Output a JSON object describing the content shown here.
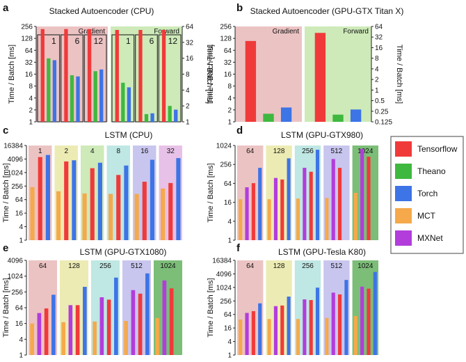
{
  "colors": {
    "tensorflow": "#f03a3a",
    "theano": "#3fb83f",
    "torch": "#3d74e6",
    "mct": "#f5a94a",
    "mxnet": "#b23ddb",
    "bg_red": "#ecc3c3",
    "bg_green": "#cdeab8",
    "bg_yellow": "#ecebb3",
    "bg_cyan": "#bfe7e3",
    "bg_lavender": "#c8c6ee",
    "bg_pink": "#e7c1e7",
    "bg_darkgreen": "#7cbd78"
  },
  "legend": {
    "items": [
      {
        "key": "tensorflow",
        "label": "Tensorflow"
      },
      {
        "key": "theano",
        "label": "Theano"
      },
      {
        "key": "torch",
        "label": "Torch"
      },
      {
        "key": "mct",
        "label": "MCT"
      },
      {
        "key": "mxnet",
        "label": "MXNet"
      }
    ]
  },
  "chart_data": [
    {
      "panel": "a",
      "type": "bar",
      "title": "Stacked Autoencoder (CPU)",
      "scale": "log2",
      "ylabel": "Time / Batch [ms]",
      "yticks": [
        "1",
        "2",
        "4",
        "8",
        "16",
        "32",
        "64",
        "128",
        "256"
      ],
      "ylim": [
        1,
        256
      ],
      "ylabel_right": "Time / Batch [ms]",
      "yticks_right": [
        "1",
        "2",
        "4",
        "8",
        "16",
        "32",
        "64"
      ],
      "ylim_right": [
        1,
        64
      ],
      "groups": [
        {
          "label": "Gradient",
          "bg": "bg_red",
          "axis": "left",
          "subgroups": [
            {
              "label": "1",
              "bars": [
                {
                  "key": "tensorflow",
                  "value": 220
                },
                {
                  "key": "theano",
                  "value": 40
                },
                {
                  "key": "torch",
                  "value": 36
                }
              ]
            },
            {
              "label": "6",
              "bars": [
                {
                  "key": "tensorflow",
                  "value": 220
                },
                {
                  "key": "theano",
                  "value": 15
                },
                {
                  "key": "torch",
                  "value": 14
                }
              ]
            },
            {
              "label": "12",
              "bars": [
                {
                  "key": "tensorflow",
                  "value": 220
                },
                {
                  "key": "theano",
                  "value": 19
                },
                {
                  "key": "torch",
                  "value": 21
                }
              ]
            }
          ]
        },
        {
          "label": "Forward",
          "bg": "bg_green",
          "axis": "right",
          "subgroups": [
            {
              "label": "1",
              "bars": [
                {
                  "key": "tensorflow",
                  "value": 55
                },
                {
                  "key": "theano",
                  "value": 5.5
                },
                {
                  "key": "torch",
                  "value": 4.5
                }
              ]
            },
            {
              "label": "6",
              "bars": [
                {
                  "key": "tensorflow",
                  "value": 55
                },
                {
                  "key": "theano",
                  "value": 1.4
                },
                {
                  "key": "torch",
                  "value": 1.45
                }
              ]
            },
            {
              "label": "12",
              "bars": [
                {
                  "key": "tensorflow",
                  "value": 55
                },
                {
                  "key": "theano",
                  "value": 2
                },
                {
                  "key": "torch",
                  "value": 1.7
                }
              ]
            }
          ]
        }
      ]
    },
    {
      "panel": "b",
      "type": "bar",
      "title": "Stacked Autoencoder (GPU-GTX Titan X)",
      "scale": "log2",
      "ylabel": "Time / Batch [ms]",
      "yticks": [
        "1",
        "2",
        "4",
        "8",
        "16",
        "32",
        "64",
        "128",
        "256"
      ],
      "ylim": [
        1,
        256
      ],
      "ylabel_right": "Time / Batch [ms]",
      "yticks_right": [
        "0.125",
        "0.25",
        "0.5",
        "1",
        "2",
        "4",
        "8",
        "16",
        "32",
        "64"
      ],
      "ylim_right": [
        0.125,
        64
      ],
      "groups": [
        {
          "label": "Gradient",
          "bg": "bg_red",
          "axis": "left",
          "subgroups": [
            {
              "label": "",
              "bars": [
                {
                  "key": "tensorflow",
                  "value": 110
                },
                {
                  "key": "theano",
                  "value": 1.6
                },
                {
                  "key": "torch",
                  "value": 2.3
                }
              ]
            }
          ]
        },
        {
          "label": "Forward",
          "bg": "bg_green",
          "axis": "right",
          "subgroups": [
            {
              "label": "",
              "bars": [
                {
                  "key": "tensorflow",
                  "value": 42
                },
                {
                  "key": "theano",
                  "value": 0.2
                },
                {
                  "key": "torch",
                  "value": 0.28
                }
              ]
            }
          ]
        }
      ]
    },
    {
      "panel": "c",
      "type": "bar",
      "title": "LSTM (CPU)",
      "scale": "log2",
      "ylabel": "Time / Batch [ms]",
      "yticks": [
        "1",
        "4",
        "16",
        "64",
        "256",
        "1024",
        "4096",
        "16384"
      ],
      "ylim": [
        1,
        16384
      ],
      "groups": [
        {
          "label": "1",
          "bg": "bg_red",
          "bars": [
            {
              "key": "mct",
              "value": 230
            },
            {
              "key": "tensorflow",
              "value": 5000
            },
            {
              "key": "torch",
              "value": 6200
            }
          ]
        },
        {
          "label": "2",
          "bg": "bg_yellow",
          "bars": [
            {
              "key": "mct",
              "value": 150
            },
            {
              "key": "tensorflow",
              "value": 3200
            },
            {
              "key": "torch",
              "value": 3600
            }
          ]
        },
        {
          "label": "4",
          "bg": "bg_green",
          "bars": [
            {
              "key": "mct",
              "value": 120
            },
            {
              "key": "tensorflow",
              "value": 1600
            },
            {
              "key": "torch",
              "value": 2800
            }
          ]
        },
        {
          "label": "8",
          "bg": "bg_cyan",
          "bars": [
            {
              "key": "mct",
              "value": 115
            },
            {
              "key": "tensorflow",
              "value": 800
            },
            {
              "key": "torch",
              "value": 2100
            }
          ]
        },
        {
          "label": "16",
          "bg": "bg_lavender",
          "bars": [
            {
              "key": "mct",
              "value": 115
            },
            {
              "key": "tensorflow",
              "value": 400
            },
            {
              "key": "torch",
              "value": 3800
            }
          ]
        },
        {
          "label": "32",
          "bg": "bg_pink",
          "bars": [
            {
              "key": "mct",
              "value": 200
            },
            {
              "key": "tensorflow",
              "value": 350
            },
            {
              "key": "torch",
              "value": 4500
            }
          ]
        }
      ]
    },
    {
      "panel": "d",
      "type": "bar",
      "title": "LSTM (GPU-GTX980)",
      "scale": "log2",
      "ylabel": "Time / Batch [ms]",
      "yticks": [
        "1",
        "4",
        "16",
        "64",
        "256",
        "1024"
      ],
      "ylim": [
        1,
        1024
      ],
      "groups": [
        {
          "label": "64",
          "bg": "bg_red",
          "bars": [
            {
              "key": "mct",
              "value": 20
            },
            {
              "key": "mxnet",
              "value": 48
            },
            {
              "key": "tensorflow",
              "value": 65
            },
            {
              "key": "torch",
              "value": 200
            }
          ]
        },
        {
          "label": "128",
          "bg": "bg_yellow",
          "bars": [
            {
              "key": "mct",
              "value": 20
            },
            {
              "key": "mxnet",
              "value": 95
            },
            {
              "key": "tensorflow",
              "value": 85
            },
            {
              "key": "torch",
              "value": 400
            }
          ]
        },
        {
          "label": "256",
          "bg": "bg_cyan",
          "bars": [
            {
              "key": "mct",
              "value": 21
            },
            {
              "key": "mxnet",
              "value": 200
            },
            {
              "key": "tensorflow",
              "value": 150
            },
            {
              "key": "torch",
              "value": 750
            }
          ]
        },
        {
          "label": "512",
          "bg": "bg_lavender",
          "bars": [
            {
              "key": "mct",
              "value": 22
            },
            {
              "key": "mxnet",
              "value": 380
            },
            {
              "key": "tensorflow",
              "value": 200
            },
            {
              "key": "torch",
              "value": 0
            }
          ]
        },
        {
          "label": "1024",
          "bg": "bg_darkgreen",
          "bars": [
            {
              "key": "mct",
              "value": 32
            },
            {
              "key": "mxnet",
              "value": 800
            },
            {
              "key": "tensorflow",
              "value": 450
            },
            {
              "key": "torch",
              "value": 0
            }
          ]
        }
      ]
    },
    {
      "panel": "e",
      "type": "bar",
      "title": "LSTM (GPU-GTX1080)",
      "scale": "log2",
      "ylabel": "Time / Batch [ms]",
      "yticks": [
        "1",
        "4",
        "16",
        "64",
        "256",
        "1024",
        "4096"
      ],
      "ylim": [
        1,
        4096
      ],
      "groups": [
        {
          "label": "64",
          "bg": "bg_red",
          "bars": [
            {
              "key": "mct",
              "value": 16
            },
            {
              "key": "mxnet",
              "value": 40
            },
            {
              "key": "tensorflow",
              "value": 60
            },
            {
              "key": "torch",
              "value": 200
            }
          ]
        },
        {
          "label": "128",
          "bg": "bg_yellow",
          "bars": [
            {
              "key": "mct",
              "value": 18
            },
            {
              "key": "mxnet",
              "value": 80
            },
            {
              "key": "tensorflow",
              "value": 80
            },
            {
              "key": "torch",
              "value": 400
            }
          ]
        },
        {
          "label": "256",
          "bg": "bg_cyan",
          "bars": [
            {
              "key": "mct",
              "value": 19
            },
            {
              "key": "mxnet",
              "value": 160
            },
            {
              "key": "tensorflow",
              "value": 130
            },
            {
              "key": "torch",
              "value": 900
            }
          ]
        },
        {
          "label": "512",
          "bg": "bg_lavender",
          "bars": [
            {
              "key": "mct",
              "value": 20
            },
            {
              "key": "mxnet",
              "value": 300
            },
            {
              "key": "tensorflow",
              "value": 220
            },
            {
              "key": "torch",
              "value": 1300
            }
          ]
        },
        {
          "label": "1024",
          "bg": "bg_darkgreen",
          "bars": [
            {
              "key": "mct",
              "value": 26
            },
            {
              "key": "mxnet",
              "value": 700
            },
            {
              "key": "tensorflow",
              "value": 350
            },
            {
              "key": "torch",
              "value": 0
            }
          ]
        }
      ]
    },
    {
      "panel": "f",
      "type": "bar",
      "title": "LSTM (GPU-Tesla K80)",
      "scale": "log2",
      "ylabel": "Time / Batch [ms]",
      "yticks": [
        "1",
        "4",
        "16",
        "64",
        "256",
        "1024",
        "4096",
        "16384"
      ],
      "ylim": [
        1,
        16384
      ],
      "groups": [
        {
          "label": "64",
          "bg": "bg_red",
          "bars": [
            {
              "key": "mct",
              "value": 38
            },
            {
              "key": "mxnet",
              "value": 75
            },
            {
              "key": "tensorflow",
              "value": 90
            },
            {
              "key": "torch",
              "value": 200
            }
          ]
        },
        {
          "label": "128",
          "bg": "bg_yellow",
          "bars": [
            {
              "key": "mct",
              "value": 40
            },
            {
              "key": "mxnet",
              "value": 150
            },
            {
              "key": "tensorflow",
              "value": 160
            },
            {
              "key": "torch",
              "value": 400
            }
          ]
        },
        {
          "label": "256",
          "bg": "bg_cyan",
          "bars": [
            {
              "key": "mct",
              "value": 40
            },
            {
              "key": "mxnet",
              "value": 300
            },
            {
              "key": "tensorflow",
              "value": 280
            },
            {
              "key": "torch",
              "value": 1000
            }
          ]
        },
        {
          "label": "512",
          "bg": "bg_lavender",
          "bars": [
            {
              "key": "mct",
              "value": 45
            },
            {
              "key": "mxnet",
              "value": 600
            },
            {
              "key": "tensorflow",
              "value": 500
            },
            {
              "key": "torch",
              "value": 2200
            }
          ]
        },
        {
          "label": "1024",
          "bg": "bg_darkgreen",
          "bars": [
            {
              "key": "mct",
              "value": 55
            },
            {
              "key": "mxnet",
              "value": 1100
            },
            {
              "key": "tensorflow",
              "value": 900
            },
            {
              "key": "torch",
              "value": 5000
            }
          ]
        }
      ]
    }
  ]
}
